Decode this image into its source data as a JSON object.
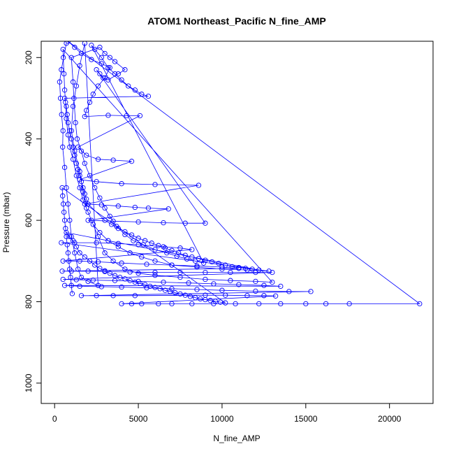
{
  "chart_data": {
    "type": "scatter",
    "title": "ATOM1 Northeast_Pacific N_fine_AMP",
    "xlabel": "N_fine_AMP",
    "ylabel": "Pressure (mbar)",
    "xlim": [
      -800,
      22600
    ],
    "ylim": [
      1050,
      160
    ],
    "y_reversed": true,
    "x_ticks": [
      0,
      5000,
      10000,
      15000,
      20000
    ],
    "x_tick_labels": [
      "0",
      "5000",
      "10000",
      "15000",
      "20000"
    ],
    "y_ticks": [
      200,
      400,
      600,
      800,
      1000
    ],
    "y_tick_labels": [
      "200",
      "400",
      "600",
      "800",
      "1000"
    ],
    "grid": false,
    "legend": "none",
    "marker": "open-circle",
    "connect_points": true,
    "series": [
      {
        "color": "#0000ff",
        "points": [
          [
            700,
            165
          ],
          [
            400,
            230
          ],
          [
            300,
            260
          ],
          [
            350,
            300
          ],
          [
            420,
            340
          ],
          [
            500,
            380
          ],
          [
            480,
            420
          ],
          [
            600,
            470
          ],
          [
            700,
            520
          ],
          [
            800,
            560
          ],
          [
            900,
            600
          ],
          [
            1000,
            640
          ],
          [
            1200,
            680
          ],
          [
            1400,
            720
          ],
          [
            1600,
            740
          ],
          [
            2000,
            750
          ],
          [
            2600,
            760
          ],
          [
            1800,
            165
          ],
          [
            1500,
            220
          ],
          [
            1300,
            270
          ],
          [
            1100,
            320
          ],
          [
            1000,
            380
          ],
          [
            1200,
            430
          ],
          [
            1500,
            480
          ],
          [
            1700,
            530
          ],
          [
            1900,
            570
          ],
          [
            2200,
            600
          ],
          [
            2600,
            640
          ],
          [
            3000,
            680
          ],
          [
            3500,
            700
          ],
          [
            4200,
            720
          ],
          [
            5000,
            730
          ],
          [
            6000,
            735
          ],
          [
            7500,
            740
          ],
          [
            9000,
            745
          ],
          [
            10500,
            748
          ],
          [
            12000,
            750
          ],
          [
            13000,
            752
          ],
          [
            500,
            180
          ],
          [
            520,
            200
          ],
          [
            560,
            240
          ],
          [
            600,
            280
          ],
          [
            650,
            310
          ],
          [
            700,
            350
          ],
          [
            800,
            390
          ],
          [
            900,
            420
          ],
          [
            1100,
            450
          ],
          [
            1300,
            490
          ],
          [
            1500,
            520
          ],
          [
            1700,
            550
          ],
          [
            2000,
            580
          ],
          [
            2300,
            610
          ],
          [
            2700,
            630
          ],
          [
            3200,
            650
          ],
          [
            3800,
            665
          ],
          [
            4500,
            680
          ],
          [
            5200,
            690
          ],
          [
            6000,
            700
          ],
          [
            7000,
            710
          ],
          [
            8500,
            715
          ],
          [
            10000,
            720
          ],
          [
            11500,
            722
          ],
          [
            12800,
            725
          ],
          [
            400,
            655
          ],
          [
            1200,
            655
          ],
          [
            2500,
            655
          ],
          [
            3800,
            657
          ],
          [
            5000,
            660
          ],
          [
            6500,
            665
          ],
          [
            7500,
            668
          ],
          [
            8200,
            672
          ],
          [
            500,
            700
          ],
          [
            1500,
            700
          ],
          [
            2600,
            702
          ],
          [
            4000,
            705
          ],
          [
            5500,
            708
          ],
          [
            7000,
            710
          ],
          [
            8500,
            712
          ],
          [
            10000,
            715
          ],
          [
            11000,
            718
          ],
          [
            450,
            725
          ],
          [
            1000,
            725
          ],
          [
            2000,
            725
          ],
          [
            3000,
            726
          ],
          [
            4500,
            727
          ],
          [
            6000,
            728
          ],
          [
            7500,
            728
          ],
          [
            9000,
            728
          ],
          [
            10500,
            728
          ],
          [
            12000,
            728
          ],
          [
            13000,
            728
          ],
          [
            500,
            745
          ],
          [
            1300,
            746
          ],
          [
            2300,
            747
          ],
          [
            3600,
            748
          ],
          [
            5000,
            750
          ],
          [
            6500,
            752
          ],
          [
            8000,
            754
          ],
          [
            9500,
            756
          ],
          [
            11000,
            758
          ],
          [
            12500,
            760
          ],
          [
            13500,
            762
          ],
          [
            600,
            760
          ],
          [
            1500,
            762
          ],
          [
            2800,
            763
          ],
          [
            4000,
            764
          ],
          [
            5500,
            766
          ],
          [
            7000,
            768
          ],
          [
            8500,
            770
          ],
          [
            10000,
            772
          ],
          [
            12000,
            774
          ],
          [
            14000,
            775
          ],
          [
            15300,
            775
          ],
          [
            1600,
            785
          ],
          [
            2500,
            785
          ],
          [
            3500,
            785
          ],
          [
            4800,
            785
          ],
          [
            9000,
            784
          ],
          [
            10200,
            784
          ],
          [
            11500,
            785
          ],
          [
            12500,
            785
          ],
          [
            13200,
            786
          ],
          [
            4000,
            805
          ],
          [
            4600,
            805
          ],
          [
            5200,
            805
          ],
          [
            6200,
            805
          ],
          [
            7000,
            805
          ],
          [
            8200,
            805
          ],
          [
            9500,
            805
          ],
          [
            10800,
            805
          ],
          [
            12200,
            805
          ],
          [
            13500,
            805
          ],
          [
            15000,
            805
          ],
          [
            16200,
            805
          ],
          [
            17600,
            805
          ],
          [
            21800,
            805
          ],
          [
            800,
            160
          ],
          [
            1200,
            175
          ],
          [
            1600,
            190
          ],
          [
            2200,
            205
          ],
          [
            2800,
            215
          ],
          [
            3300,
            225
          ],
          [
            3000,
            250
          ],
          [
            2600,
            270
          ],
          [
            2300,
            290
          ],
          [
            2100,
            310
          ],
          [
            1900,
            330
          ],
          [
            1800,
            345
          ],
          [
            3200,
            342
          ],
          [
            4300,
            343
          ],
          [
            5100,
            343
          ],
          [
            1400,
            420
          ],
          [
            1900,
            440
          ],
          [
            2600,
            450
          ],
          [
            3500,
            452
          ],
          [
            4600,
            455
          ],
          [
            1500,
            500
          ],
          [
            2500,
            505
          ],
          [
            4000,
            510
          ],
          [
            6000,
            512
          ],
          [
            8600,
            514
          ],
          [
            1800,
            560
          ],
          [
            2800,
            562
          ],
          [
            3800,
            565
          ],
          [
            4800,
            568
          ],
          [
            5600,
            570
          ],
          [
            6800,
            572
          ],
          [
            2000,
            600
          ],
          [
            3500,
            602
          ],
          [
            5000,
            604
          ],
          [
            6500,
            606
          ],
          [
            7800,
            607
          ],
          [
            9000,
            607
          ],
          [
            2500,
            230
          ],
          [
            2700,
            240
          ],
          [
            2900,
            250
          ],
          [
            3200,
            255
          ],
          [
            3800,
            240
          ],
          [
            4200,
            230
          ],
          [
            3600,
            210
          ],
          [
            3300,
            200
          ],
          [
            3000,
            190
          ],
          [
            2700,
            175
          ],
          [
            1000,
            200
          ],
          [
            1100,
            260
          ],
          [
            1150,
            300
          ],
          [
            1250,
            360
          ],
          [
            1350,
            400
          ],
          [
            1600,
            430
          ],
          [
            1800,
            460
          ],
          [
            2100,
            490
          ],
          [
            2400,
            520
          ],
          [
            2700,
            545
          ],
          [
            3000,
            570
          ],
          [
            3300,
            590
          ],
          [
            3700,
            615
          ],
          [
            4200,
            635
          ],
          [
            4700,
            650
          ],
          [
            5300,
            660
          ],
          [
            6000,
            672
          ],
          [
            6700,
            680
          ],
          [
            7300,
            688
          ],
          [
            7900,
            695
          ],
          [
            8400,
            700
          ],
          [
            8900,
            705
          ],
          [
            2200,
            170
          ],
          [
            2400,
            180
          ],
          [
            2800,
            200
          ],
          [
            3200,
            225
          ],
          [
            3600,
            240
          ],
          [
            4000,
            255
          ],
          [
            4400,
            270
          ],
          [
            4800,
            280
          ],
          [
            5200,
            290
          ],
          [
            5600,
            295
          ],
          [
            600,
            300
          ],
          [
            700,
            320
          ],
          [
            750,
            340
          ],
          [
            800,
            360
          ],
          [
            900,
            380
          ],
          [
            1000,
            400
          ],
          [
            1100,
            420
          ],
          [
            1200,
            440
          ],
          [
            1300,
            460
          ],
          [
            1400,
            475
          ],
          [
            1500,
            490
          ],
          [
            1600,
            505
          ],
          [
            1700,
            520
          ],
          [
            1800,
            535
          ],
          [
            1900,
            548
          ],
          [
            2000,
            560
          ],
          [
            3000,
            600
          ],
          [
            3400,
            610
          ],
          [
            3800,
            620
          ],
          [
            4200,
            628
          ],
          [
            4600,
            636
          ],
          [
            5000,
            644
          ],
          [
            5400,
            650
          ],
          [
            5800,
            656
          ],
          [
            6200,
            662
          ],
          [
            6600,
            668
          ],
          [
            7000,
            674
          ],
          [
            7400,
            680
          ],
          [
            7800,
            686
          ],
          [
            8200,
            690
          ],
          [
            8600,
            694
          ],
          [
            9000,
            698
          ],
          [
            9400,
            702
          ],
          [
            9800,
            706
          ],
          [
            10200,
            710
          ],
          [
            10600,
            714
          ],
          [
            11000,
            716
          ],
          [
            11400,
            718
          ],
          [
            11800,
            720
          ],
          [
            12200,
            722
          ],
          [
            700,
            630
          ],
          [
            900,
            640
          ],
          [
            1100,
            650
          ],
          [
            1300,
            665
          ],
          [
            1500,
            680
          ],
          [
            1800,
            690
          ],
          [
            2100,
            700
          ],
          [
            2400,
            710
          ],
          [
            2700,
            718
          ],
          [
            3000,
            724
          ],
          [
            3300,
            730
          ],
          [
            3600,
            736
          ],
          [
            3900,
            740
          ],
          [
            4200,
            744
          ],
          [
            4500,
            748
          ],
          [
            4800,
            752
          ],
          [
            5100,
            755
          ],
          [
            5400,
            758
          ],
          [
            5700,
            762
          ],
          [
            6000,
            765
          ],
          [
            6300,
            768
          ],
          [
            6600,
            772
          ],
          [
            6900,
            775
          ],
          [
            7200,
            778
          ],
          [
            7500,
            781
          ],
          [
            7800,
            784
          ],
          [
            8100,
            787
          ],
          [
            8400,
            790
          ],
          [
            8700,
            793
          ],
          [
            9000,
            795
          ],
          [
            9300,
            797
          ],
          [
            9600,
            799
          ],
          [
            9900,
            801
          ],
          [
            10200,
            803
          ],
          [
            450,
            520
          ],
          [
            480,
            540
          ],
          [
            520,
            560
          ],
          [
            560,
            580
          ],
          [
            600,
            600
          ],
          [
            650,
            620
          ],
          [
            700,
            640
          ],
          [
            750,
            660
          ],
          [
            800,
            680
          ],
          [
            850,
            700
          ],
          [
            900,
            720
          ],
          [
            950,
            740
          ],
          [
            1000,
            760
          ],
          [
            1050,
            780
          ]
        ]
      }
    ]
  }
}
